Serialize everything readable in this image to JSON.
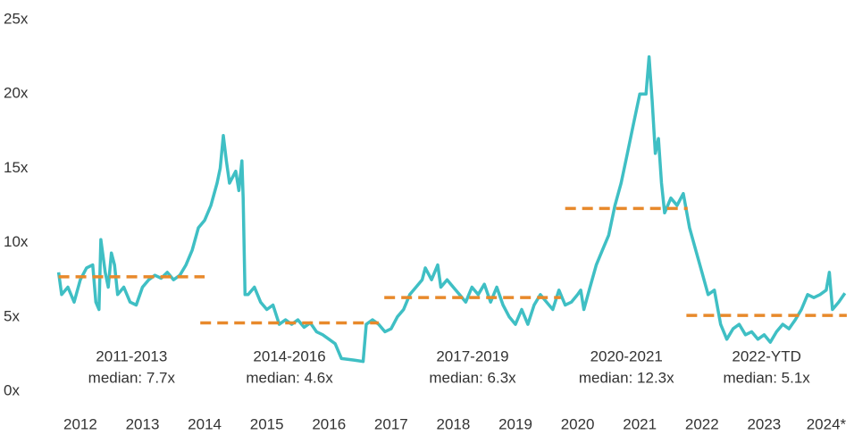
{
  "chart_data": {
    "type": "line",
    "x": [
      2011.65,
      2011.7,
      2011.8,
      2011.9,
      2012.0,
      2012.1,
      2012.2,
      2012.25,
      2012.3,
      2012.33,
      2012.4,
      2012.45,
      2012.5,
      2012.55,
      2012.6,
      2012.7,
      2012.8,
      2012.9,
      2013.0,
      2013.1,
      2013.2,
      2013.3,
      2013.4,
      2013.5,
      2013.6,
      2013.7,
      2013.8,
      2013.9,
      2014.0,
      2014.1,
      2014.2,
      2014.25,
      2014.3,
      2014.35,
      2014.4,
      2014.5,
      2014.55,
      2014.6,
      2014.62,
      2014.65,
      2014.7,
      2014.8,
      2014.9,
      2015.0,
      2015.1,
      2015.2,
      2015.3,
      2015.4,
      2015.5,
      2015.6,
      2015.7,
      2015.8,
      2015.9,
      2016.0,
      2016.1,
      2016.2,
      2016.4,
      2016.55,
      2016.6,
      2016.7,
      2016.8,
      2016.9,
      2017.0,
      2017.1,
      2017.2,
      2017.3,
      2017.4,
      2017.5,
      2017.55,
      2017.65,
      2017.75,
      2017.8,
      2017.9,
      2018.0,
      2018.1,
      2018.2,
      2018.3,
      2018.4,
      2018.5,
      2018.6,
      2018.7,
      2018.8,
      2018.9,
      2019.0,
      2019.1,
      2019.2,
      2019.3,
      2019.4,
      2019.5,
      2019.6,
      2019.7,
      2019.8,
      2019.9,
      2020.0,
      2020.05,
      2020.1,
      2020.2,
      2020.3,
      2020.4,
      2020.5,
      2020.6,
      2020.7,
      2020.8,
      2020.9,
      2021.0,
      2021.1,
      2021.15,
      2021.2,
      2021.25,
      2021.3,
      2021.35,
      2021.4,
      2021.5,
      2021.6,
      2021.7,
      2021.8,
      2021.9,
      2022.0,
      2022.1,
      2022.2,
      2022.3,
      2022.4,
      2022.5,
      2022.6,
      2022.7,
      2022.8,
      2022.9,
      2023.0,
      2023.1,
      2023.2,
      2023.3,
      2023.4,
      2023.5,
      2023.6,
      2023.7,
      2023.8,
      2023.9,
      2024.0,
      2024.05,
      2024.1,
      2024.2,
      2024.3
    ],
    "series": [
      {
        "color": "#3fbfc4",
        "values": [
          8.0,
          6.5,
          7.0,
          6.0,
          7.5,
          8.3,
          8.5,
          6.0,
          5.5,
          10.2,
          8.0,
          7.0,
          9.3,
          8.5,
          6.5,
          7.0,
          6.0,
          5.8,
          7.0,
          7.5,
          7.8,
          7.6,
          8.0,
          7.5,
          7.8,
          8.5,
          9.5,
          11.0,
          11.5,
          12.5,
          14.0,
          15.0,
          17.2,
          15.5,
          14.0,
          14.8,
          13.5,
          15.5,
          13.0,
          6.5,
          6.5,
          7.0,
          6.0,
          5.5,
          5.8,
          4.5,
          4.8,
          4.5,
          4.8,
          4.3,
          4.6,
          4.0,
          3.8,
          3.5,
          3.2,
          2.2,
          2.1,
          2.0,
          4.5,
          4.8,
          4.5,
          4.0,
          4.2,
          5.0,
          5.5,
          6.5,
          7.0,
          7.5,
          8.3,
          7.5,
          8.5,
          7.0,
          7.5,
          7.0,
          6.5,
          6.0,
          7.0,
          6.5,
          7.2,
          6.0,
          7.0,
          5.8,
          5.0,
          4.5,
          5.5,
          4.5,
          5.8,
          6.5,
          6.0,
          5.5,
          6.8,
          5.8,
          6.0,
          6.5,
          6.8,
          5.5,
          7.0,
          8.5,
          9.5,
          10.5,
          12.5,
          14.0,
          16.0,
          18.0,
          20.0,
          20.0,
          22.5,
          19.5,
          16.0,
          17.0,
          14.0,
          12.0,
          13.0,
          12.5,
          13.3,
          11.0,
          9.5,
          8.0,
          6.5,
          6.8,
          4.5,
          3.5,
          4.2,
          4.5,
          3.8,
          4.0,
          3.5,
          3.8,
          3.3,
          4.0,
          4.5,
          4.2,
          4.8,
          5.5,
          6.5,
          6.3,
          6.5,
          6.8,
          8.0,
          5.5,
          6.0,
          6.6
        ]
      }
    ],
    "medians": [
      {
        "name": "2011-2013",
        "median": 7.7,
        "median_label": "median: 7.7x",
        "start": 2011.65,
        "end": 2014.0
      },
      {
        "name": "2014-2016",
        "median": 4.6,
        "median_label": "median: 4.6x",
        "start": 2013.93,
        "end": 2016.8
      },
      {
        "name": "2017-2019",
        "median": 6.3,
        "median_label": "median: 6.3x",
        "start": 2016.89,
        "end": 2019.73
      },
      {
        "name": "2020-2021",
        "median": 12.3,
        "median_label": "median: 12.3x",
        "start": 2019.8,
        "end": 2021.77
      },
      {
        "name": "2022-YTD",
        "median": 5.1,
        "median_label": "median: 5.1x",
        "start": 2021.75,
        "end": 2024.33
      }
    ],
    "median_color": "#e8892b",
    "xlim": [
      2011.57,
      2024.36
    ],
    "xticks": [
      2012,
      2013,
      2014,
      2015,
      2016,
      2017,
      2018,
      2019,
      2020,
      2021,
      2022,
      2023,
      {
        "value": 2024,
        "label": "2024*"
      }
    ],
    "ylim": [
      0,
      25
    ],
    "yticks": [
      {
        "value": 0,
        "label": "0x"
      },
      {
        "value": 5,
        "label": "5x"
      },
      {
        "value": 10,
        "label": "10x"
      },
      {
        "value": 15,
        "label": "15x"
      },
      {
        "value": 20,
        "label": "20x"
      },
      {
        "value": 25,
        "label": "25x"
      }
    ],
    "grid": false
  }
}
